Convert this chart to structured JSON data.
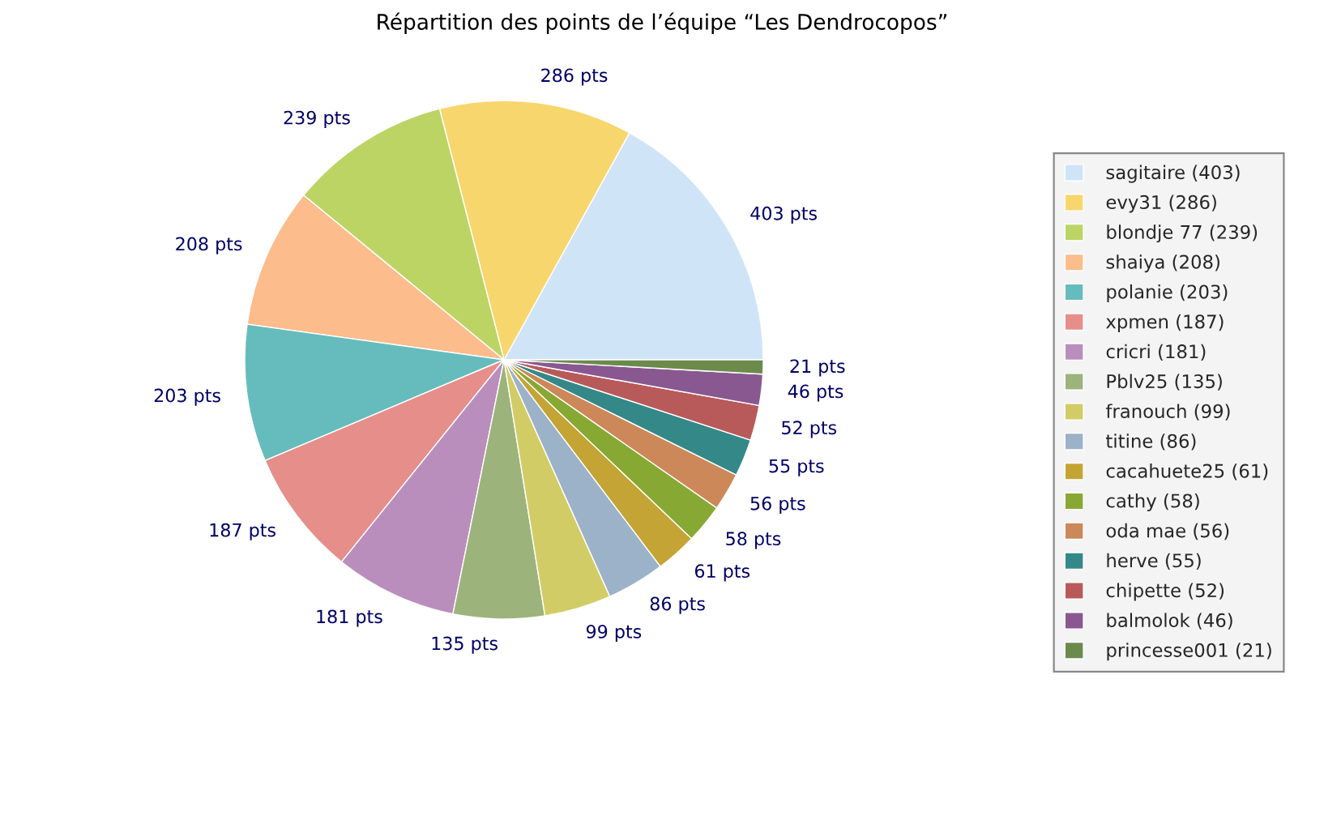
{
  "chart_data": {
    "type": "pie",
    "title": "Répartition des points de l’équipe “Les Dendrocopos”",
    "categories": [
      "sagitaire (403)",
      "evy31 (286)",
      "blondje 77 (239)",
      "shaiya (208)",
      "polanie (203)",
      "xpmen (187)",
      "cricri (181)",
      "Pblv25 (135)",
      "franouch (99)",
      "titine (86)",
      "cacahuete25 (61)",
      "cathy (58)",
      "oda mae (56)",
      "herve (55)",
      "chipette (52)",
      "balmolok (46)",
      "princesse001 (21)"
    ],
    "values": [
      403,
      286,
      239,
      208,
      203,
      187,
      181,
      135,
      99,
      86,
      61,
      58,
      56,
      55,
      52,
      46,
      21
    ],
    "value_labels": [
      "403 pts",
      "286 pts",
      "239 pts",
      "208 pts",
      "203 pts",
      "187 pts",
      "181 pts",
      "135 pts",
      "99 pts",
      "86 pts",
      "61 pts",
      "58 pts",
      "56 pts",
      "55 pts",
      "52 pts",
      "46 pts",
      "21 pts"
    ],
    "colors": [
      "#d0e4f8",
      "#f8d66e",
      "#bcd464",
      "#fcbc8c",
      "#66bcbc",
      "#e68e8a",
      "#ba8ebc",
      "#9cb47c",
      "#d2cc66",
      "#9cb2c8",
      "#c4a434",
      "#88a834",
      "#cc8858",
      "#348888",
      "#b85a5a",
      "#8a5890",
      "#6c8a4c"
    ],
    "legend": "right"
  }
}
